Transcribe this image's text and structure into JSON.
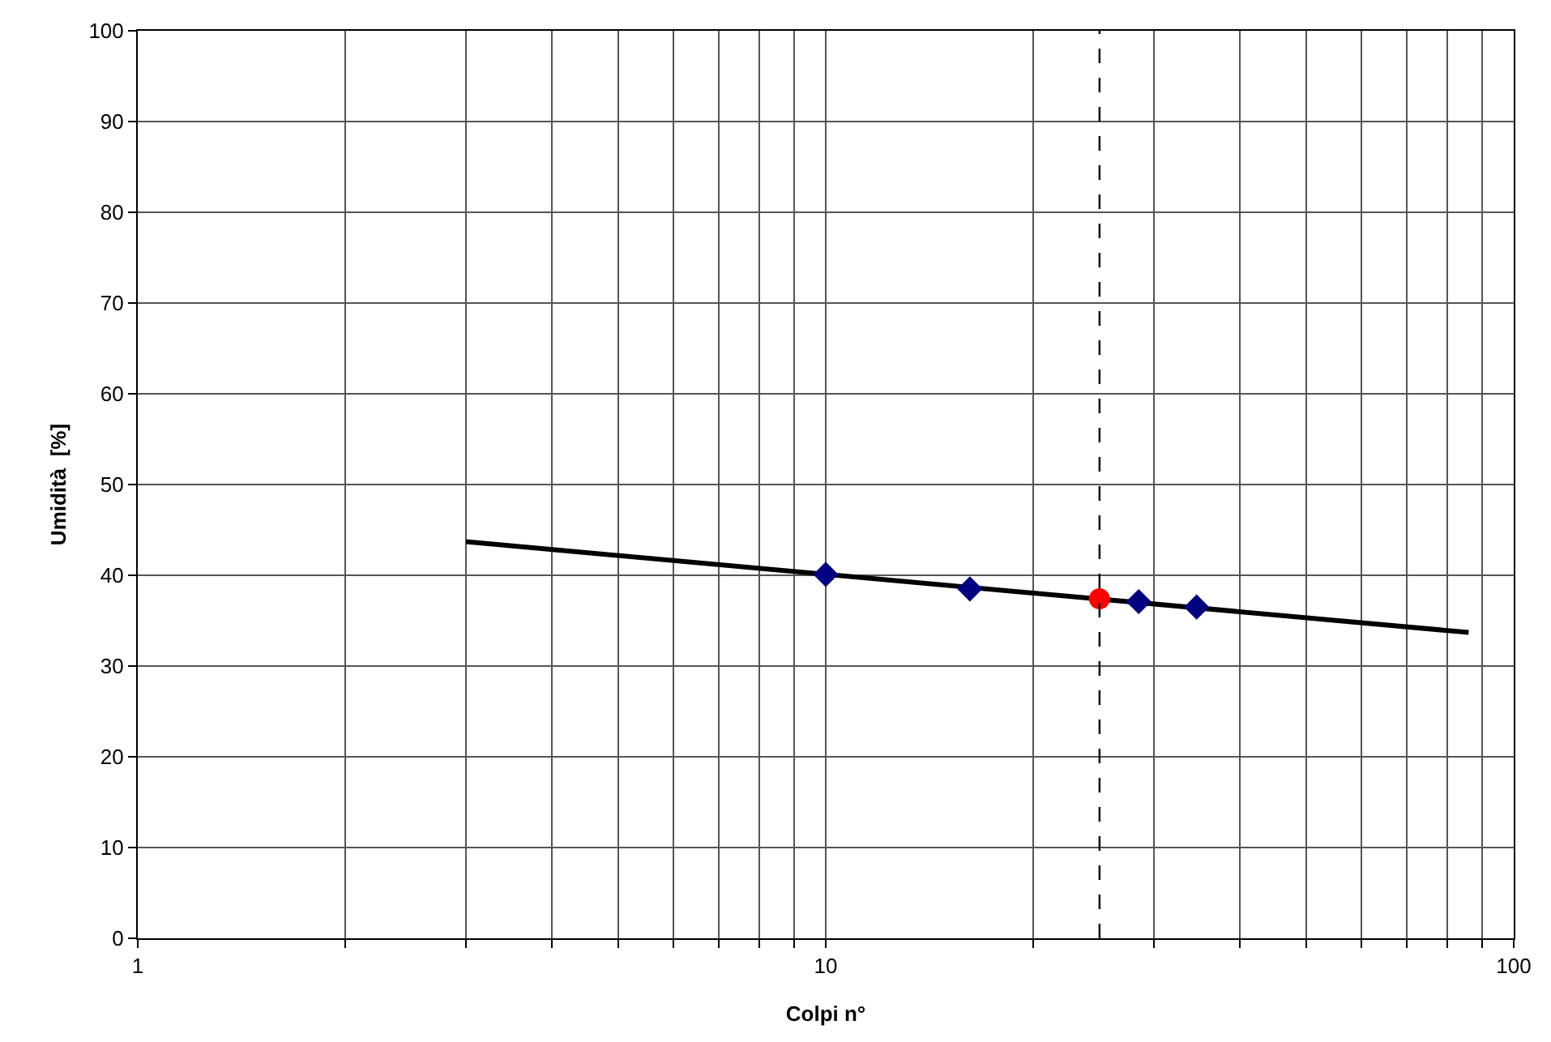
{
  "chart_data": {
    "type": "scatter",
    "xlabel": "Colpi n°",
    "ylabel": "Umidità  [%]",
    "log": "x",
    "grid": true,
    "xlim": [
      1,
      100
    ],
    "ylim": [
      0,
      100
    ],
    "xticks": [
      1,
      {
        "value": 2,
        "label": null
      },
      {
        "value": 3,
        "label": null
      },
      {
        "value": 4,
        "label": null
      },
      {
        "value": 5,
        "label": null
      },
      {
        "value": 6,
        "label": null
      },
      {
        "value": 7,
        "label": null
      },
      {
        "value": 8,
        "label": null
      },
      {
        "value": 9,
        "label": null
      },
      10,
      {
        "value": 20,
        "label": null
      },
      {
        "value": 30,
        "label": null
      },
      {
        "value": 40,
        "label": null
      },
      {
        "value": 50,
        "label": null
      },
      {
        "value": 60,
        "label": null
      },
      {
        "value": 70,
        "label": null
      },
      {
        "value": 80,
        "label": null
      },
      {
        "value": 90,
        "label": null
      },
      100
    ],
    "yticks": [
      0,
      10,
      20,
      30,
      40,
      50,
      60,
      70,
      80,
      90,
      100
    ],
    "series": [
      {
        "type": "line",
        "color": "#000000",
        "marker": "none",
        "line_style": "solid",
        "x": [
          3,
          86
        ],
        "values": [
          43.7,
          33.7
        ]
      },
      {
        "color": "#000080",
        "marker": "diamond",
        "x": [
          10,
          16.2,
          28.5,
          34.6
        ],
        "values": [
          40.1,
          38.5,
          37.1,
          36.5
        ]
      },
      {
        "color": "#ff0000",
        "marker": "circle",
        "x": [
          25
        ],
        "values": [
          37.4
        ]
      }
    ],
    "ref_lines": [
      {
        "axis": "x",
        "value": 25,
        "label": null,
        "color": "#000000",
        "line_style": "dashed"
      }
    ]
  }
}
